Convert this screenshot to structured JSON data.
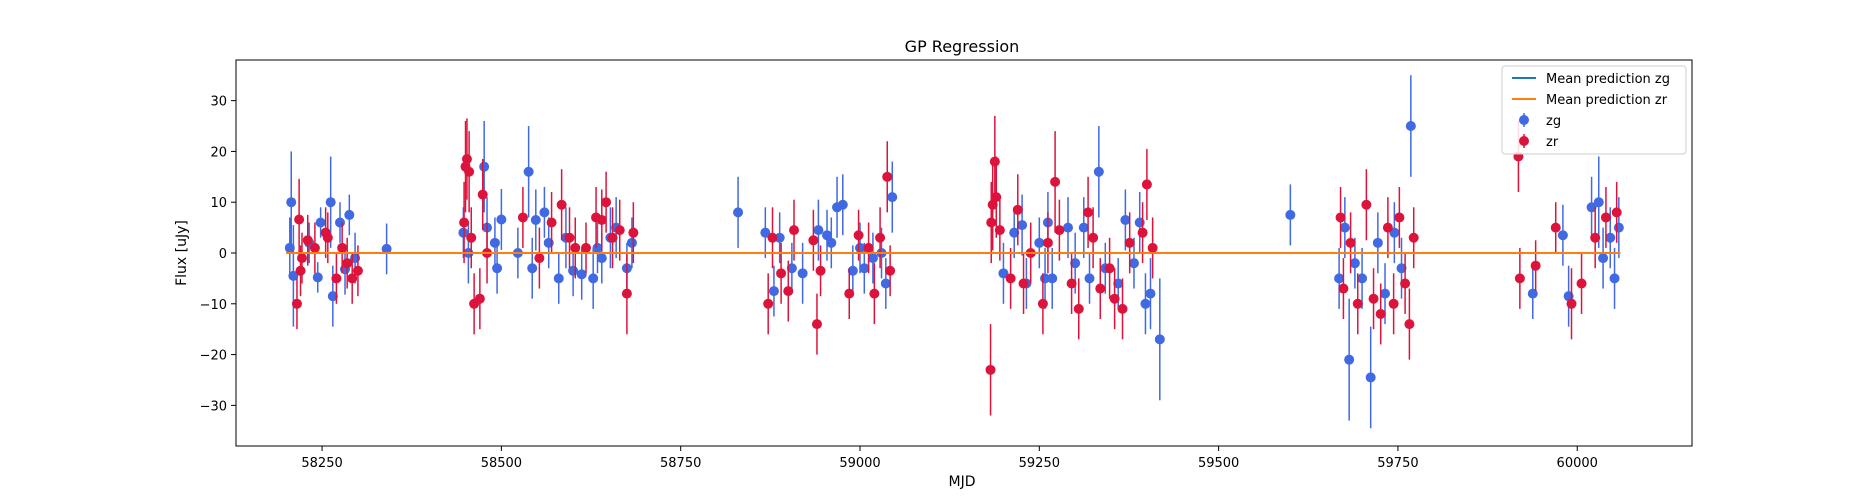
{
  "chart_data": {
    "type": "scatter",
    "title": "GP Regression",
    "xlabel": "MJD",
    "ylabel": "Flux [uJy]",
    "xlim": [
      58130,
      60160
    ],
    "ylim": [
      -38,
      38
    ],
    "xticks": [
      58250,
      58500,
      58750,
      59000,
      59250,
      59500,
      59750,
      60000
    ],
    "yticks": [
      -30,
      -20,
      -10,
      0,
      10,
      20,
      30
    ],
    "grid": false,
    "legend": "top-right",
    "lines": [
      {
        "name": "Mean prediction zg",
        "color": "#1f77b4",
        "x": [
          58200,
          60060
        ],
        "y": [
          0,
          0
        ]
      },
      {
        "name": "Mean prediction zr",
        "color": "#ff7f0e",
        "x": [
          58200,
          60060
        ],
        "y": [
          0,
          0
        ]
      }
    ],
    "series": [
      {
        "name": "zg",
        "color": "#4169e1",
        "points": [
          {
            "x": 58205,
            "y": 1,
            "err": 6
          },
          {
            "x": 58207,
            "y": 10,
            "err": 10
          },
          {
            "x": 58210,
            "y": -4.5,
            "err": 10
          },
          {
            "x": 58232,
            "y": 2,
            "err": 4
          },
          {
            "x": 58244,
            "y": -4.8,
            "err": 3
          },
          {
            "x": 58248,
            "y": 6,
            "err": 3
          },
          {
            "x": 58262,
            "y": 10,
            "err": 9
          },
          {
            "x": 58265,
            "y": -8.5,
            "err": 6
          },
          {
            "x": 58275,
            "y": 6,
            "err": 4
          },
          {
            "x": 58282,
            "y": -3.2,
            "err": 5
          },
          {
            "x": 58288,
            "y": 7.5,
            "err": 4
          },
          {
            "x": 58296,
            "y": -1,
            "err": 5
          },
          {
            "x": 58340,
            "y": 0.8,
            "err": 5
          },
          {
            "x": 58447,
            "y": 4,
            "err": 5
          },
          {
            "x": 58454,
            "y": 0,
            "err": 6
          },
          {
            "x": 58476,
            "y": 17,
            "err": 9
          },
          {
            "x": 58480,
            "y": 5,
            "err": 6
          },
          {
            "x": 58491,
            "y": 2,
            "err": 5
          },
          {
            "x": 58494,
            "y": -3,
            "err": 5
          },
          {
            "x": 58500,
            "y": 6.6,
            "err": 6
          },
          {
            "x": 58523,
            "y": 0,
            "err": 5
          },
          {
            "x": 58538,
            "y": 16,
            "err": 9
          },
          {
            "x": 58543,
            "y": -3,
            "err": 6
          },
          {
            "x": 58548,
            "y": 6.5,
            "err": 6
          },
          {
            "x": 58560,
            "y": 8,
            "err": 5
          },
          {
            "x": 58566,
            "y": 2,
            "err": 5
          },
          {
            "x": 58580,
            "y": -5,
            "err": 5
          },
          {
            "x": 58590,
            "y": 3,
            "err": 6
          },
          {
            "x": 58600,
            "y": -3.5,
            "err": 5
          },
          {
            "x": 58612,
            "y": -4.2,
            "err": 5
          },
          {
            "x": 58628,
            "y": -5,
            "err": 6
          },
          {
            "x": 58634,
            "y": 1,
            "err": 5
          },
          {
            "x": 58640,
            "y": -1,
            "err": 5
          },
          {
            "x": 58652,
            "y": 3,
            "err": 6
          },
          {
            "x": 58660,
            "y": 5,
            "err": 6
          },
          {
            "x": 58675,
            "y": -3,
            "err": 5
          },
          {
            "x": 58682,
            "y": 2,
            "err": 5
          },
          {
            "x": 58830,
            "y": 8,
            "err": 7
          },
          {
            "x": 58868,
            "y": 4,
            "err": 5
          },
          {
            "x": 58880,
            "y": -7.5,
            "err": 5
          },
          {
            "x": 58888,
            "y": 3,
            "err": 5
          },
          {
            "x": 58905,
            "y": -3,
            "err": 5
          },
          {
            "x": 58920,
            "y": -4,
            "err": 6
          },
          {
            "x": 58942,
            "y": 4.5,
            "err": 6
          },
          {
            "x": 58954,
            "y": 3.5,
            "err": 5
          },
          {
            "x": 58960,
            "y": 2,
            "err": 5
          },
          {
            "x": 58968,
            "y": 9,
            "err": 6
          },
          {
            "x": 58976,
            "y": 9.5,
            "err": 6
          },
          {
            "x": 58990,
            "y": -3.5,
            "err": 5
          },
          {
            "x": 59000,
            "y": 1,
            "err": 5
          },
          {
            "x": 59006,
            "y": -3,
            "err": 5
          },
          {
            "x": 59018,
            "y": -1,
            "err": 5
          },
          {
            "x": 59030,
            "y": 0,
            "err": 5
          },
          {
            "x": 59036,
            "y": -6,
            "err": 5
          },
          {
            "x": 59045,
            "y": 11,
            "err": 7
          },
          {
            "x": 59200,
            "y": -4,
            "err": 6
          },
          {
            "x": 59215,
            "y": 4,
            "err": 5
          },
          {
            "x": 59226,
            "y": 5.5,
            "err": 6
          },
          {
            "x": 59232,
            "y": -6,
            "err": 5
          },
          {
            "x": 59250,
            "y": 2,
            "err": 5
          },
          {
            "x": 59258,
            "y": -5,
            "err": 6
          },
          {
            "x": 59262,
            "y": 6,
            "err": 6
          },
          {
            "x": 59268,
            "y": -5,
            "err": 6
          },
          {
            "x": 59290,
            "y": 5,
            "err": 6
          },
          {
            "x": 59300,
            "y": -2,
            "err": 6
          },
          {
            "x": 59312,
            "y": 5,
            "err": 6
          },
          {
            "x": 59320,
            "y": -5,
            "err": 5
          },
          {
            "x": 59333,
            "y": 16,
            "err": 9
          },
          {
            "x": 59342,
            "y": -3,
            "err": 5
          },
          {
            "x": 59360,
            "y": -6,
            "err": 5
          },
          {
            "x": 59370,
            "y": 6.5,
            "err": 6
          },
          {
            "x": 59382,
            "y": -2,
            "err": 5
          },
          {
            "x": 59390,
            "y": 6,
            "err": 6
          },
          {
            "x": 59398,
            "y": -10,
            "err": 6
          },
          {
            "x": 59405,
            "y": -8,
            "err": 7
          },
          {
            "x": 59418,
            "y": -17,
            "err": 12
          },
          {
            "x": 59600,
            "y": 7.5,
            "err": 6
          },
          {
            "x": 59668,
            "y": -5,
            "err": 6
          },
          {
            "x": 59676,
            "y": 5,
            "err": 6
          },
          {
            "x": 59682,
            "y": -21,
            "err": 12
          },
          {
            "x": 59690,
            "y": -2,
            "err": 5
          },
          {
            "x": 59700,
            "y": -5,
            "err": 6
          },
          {
            "x": 59712,
            "y": -24.5,
            "err": 10
          },
          {
            "x": 59722,
            "y": 2,
            "err": 6
          },
          {
            "x": 59732,
            "y": -8,
            "err": 6
          },
          {
            "x": 59745,
            "y": 4,
            "err": 6
          },
          {
            "x": 59755,
            "y": -3,
            "err": 6
          },
          {
            "x": 59768,
            "y": 25,
            "err": 10
          },
          {
            "x": 59980,
            "y": 3.5,
            "err": 6
          },
          {
            "x": 59988,
            "y": -8.5,
            "err": 6
          },
          {
            "x": 59938,
            "y": -8,
            "err": 5
          },
          {
            "x": 60020,
            "y": 9,
            "err": 6
          },
          {
            "x": 60030,
            "y": 10,
            "err": 9
          },
          {
            "x": 60036,
            "y": -1,
            "err": 6
          },
          {
            "x": 60046,
            "y": 3,
            "err": 6
          },
          {
            "x": 60052,
            "y": -5,
            "err": 6
          },
          {
            "x": 60058,
            "y": 5,
            "err": 6
          }
        ]
      },
      {
        "name": "zr",
        "color": "#dc143c",
        "points": [
          {
            "x": 58215,
            "y": -10,
            "err": 5
          },
          {
            "x": 58218,
            "y": 6.6,
            "err": 8
          },
          {
            "x": 58220,
            "y": -3.5,
            "err": 5
          },
          {
            "x": 58222,
            "y": -1,
            "err": 5
          },
          {
            "x": 58230,
            "y": 2.5,
            "err": 5
          },
          {
            "x": 58240,
            "y": 1,
            "err": 5
          },
          {
            "x": 58255,
            "y": 4,
            "err": 5
          },
          {
            "x": 58258,
            "y": 3,
            "err": 5
          },
          {
            "x": 58270,
            "y": -5,
            "err": 5
          },
          {
            "x": 58278,
            "y": 1,
            "err": 5
          },
          {
            "x": 58285,
            "y": -2,
            "err": 5
          },
          {
            "x": 58292,
            "y": -5,
            "err": 5
          },
          {
            "x": 58300,
            "y": -3.5,
            "err": 5
          },
          {
            "x": 58448,
            "y": 6,
            "err": 8
          },
          {
            "x": 58450,
            "y": 17,
            "err": 9
          },
          {
            "x": 58452,
            "y": 18.5,
            "err": 8
          },
          {
            "x": 58455,
            "y": 16,
            "err": 8
          },
          {
            "x": 58458,
            "y": 3,
            "err": 6
          },
          {
            "x": 58462,
            "y": -10,
            "err": 6
          },
          {
            "x": 58470,
            "y": -9,
            "err": 6
          },
          {
            "x": 58474,
            "y": 11.5,
            "err": 7
          },
          {
            "x": 58480,
            "y": 0,
            "err": 6
          },
          {
            "x": 58530,
            "y": 7,
            "err": 6
          },
          {
            "x": 58553,
            "y": -1,
            "err": 6
          },
          {
            "x": 58570,
            "y": 6,
            "err": 6
          },
          {
            "x": 58584,
            "y": 9.5,
            "err": 7
          },
          {
            "x": 58595,
            "y": 3,
            "err": 6
          },
          {
            "x": 58603,
            "y": 1,
            "err": 6
          },
          {
            "x": 58618,
            "y": 1,
            "err": 5
          },
          {
            "x": 58632,
            "y": 7,
            "err": 6
          },
          {
            "x": 58640,
            "y": 6.5,
            "err": 6
          },
          {
            "x": 58646,
            "y": 10,
            "err": 6
          },
          {
            "x": 58655,
            "y": 3,
            "err": 6
          },
          {
            "x": 58665,
            "y": 4.5,
            "err": 6
          },
          {
            "x": 58675,
            "y": -8,
            "err": 8
          },
          {
            "x": 58684,
            "y": 4,
            "err": 6
          },
          {
            "x": 58872,
            "y": -10,
            "err": 6
          },
          {
            "x": 58878,
            "y": 3,
            "err": 6
          },
          {
            "x": 58890,
            "y": -4,
            "err": 6
          },
          {
            "x": 58900,
            "y": -7.5,
            "err": 6
          },
          {
            "x": 58908,
            "y": 4.5,
            "err": 6
          },
          {
            "x": 58935,
            "y": 2.5,
            "err": 6
          },
          {
            "x": 58940,
            "y": -14,
            "err": 6
          },
          {
            "x": 58945,
            "y": -3.5,
            "err": 5
          },
          {
            "x": 58985,
            "y": -8,
            "err": 5
          },
          {
            "x": 58998,
            "y": 3.5,
            "err": 5
          },
          {
            "x": 59012,
            "y": 1,
            "err": 5
          },
          {
            "x": 59020,
            "y": -8,
            "err": 6
          },
          {
            "x": 59028,
            "y": 3,
            "err": 6
          },
          {
            "x": 59038,
            "y": 15,
            "err": 7
          },
          {
            "x": 59042,
            "y": -3.5,
            "err": 5
          },
          {
            "x": 59182,
            "y": -23,
            "err": 9
          },
          {
            "x": 59183,
            "y": 6,
            "err": 8
          },
          {
            "x": 59185,
            "y": 9.5,
            "err": 9
          },
          {
            "x": 59188,
            "y": 18,
            "err": 9
          },
          {
            "x": 59190,
            "y": 11,
            "err": 8
          },
          {
            "x": 59195,
            "y": 4.5,
            "err": 6
          },
          {
            "x": 59210,
            "y": -5,
            "err": 6
          },
          {
            "x": 59220,
            "y": 8.5,
            "err": 7
          },
          {
            "x": 59228,
            "y": -6,
            "err": 6
          },
          {
            "x": 59238,
            "y": 0,
            "err": 6
          },
          {
            "x": 59255,
            "y": -10,
            "err": 6
          },
          {
            "x": 59262,
            "y": 2,
            "err": 6
          },
          {
            "x": 59272,
            "y": 14,
            "err": 10
          },
          {
            "x": 59278,
            "y": 4.5,
            "err": 6
          },
          {
            "x": 59295,
            "y": -6,
            "err": 6
          },
          {
            "x": 59305,
            "y": -11,
            "err": 6
          },
          {
            "x": 59318,
            "y": 8,
            "err": 7
          },
          {
            "x": 59325,
            "y": 3,
            "err": 6
          },
          {
            "x": 59335,
            "y": -7,
            "err": 6
          },
          {
            "x": 59348,
            "y": -3,
            "err": 6
          },
          {
            "x": 59355,
            "y": -9,
            "err": 6
          },
          {
            "x": 59366,
            "y": -11,
            "err": 6
          },
          {
            "x": 59376,
            "y": 2,
            "err": 6
          },
          {
            "x": 59394,
            "y": 4,
            "err": 6
          },
          {
            "x": 59400,
            "y": 13.5,
            "err": 7
          },
          {
            "x": 59408,
            "y": 1,
            "err": 6
          },
          {
            "x": 59670,
            "y": 7,
            "err": 6
          },
          {
            "x": 59674,
            "y": -7,
            "err": 6
          },
          {
            "x": 59684,
            "y": 2,
            "err": 6
          },
          {
            "x": 59694,
            "y": -10,
            "err": 6
          },
          {
            "x": 59706,
            "y": 9.5,
            "err": 7
          },
          {
            "x": 59716,
            "y": -9,
            "err": 6
          },
          {
            "x": 59726,
            "y": -12,
            "err": 6
          },
          {
            "x": 59736,
            "y": 5,
            "err": 6
          },
          {
            "x": 59744,
            "y": -10,
            "err": 6
          },
          {
            "x": 59752,
            "y": 7,
            "err": 6
          },
          {
            "x": 59760,
            "y": -6,
            "err": 6
          },
          {
            "x": 59766,
            "y": -14,
            "err": 7
          },
          {
            "x": 59772,
            "y": 3,
            "err": 6
          },
          {
            "x": 59918,
            "y": 19,
            "err": 7
          },
          {
            "x": 59920,
            "y": -5,
            "err": 6
          },
          {
            "x": 59942,
            "y": -2.5,
            "err": 5
          },
          {
            "x": 59970,
            "y": 5,
            "err": 5
          },
          {
            "x": 59992,
            "y": -10,
            "err": 7
          },
          {
            "x": 60006,
            "y": -6,
            "err": 6
          },
          {
            "x": 60025,
            "y": 3,
            "err": 6
          },
          {
            "x": 60040,
            "y": 7,
            "err": 6
          },
          {
            "x": 60055,
            "y": 8,
            "err": 6
          }
        ]
      }
    ]
  }
}
